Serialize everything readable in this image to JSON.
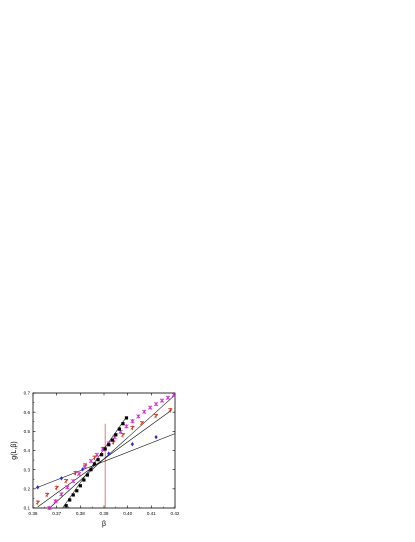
{
  "chart_data": {
    "type": "scatter",
    "title": "",
    "xlabel": "β",
    "ylabel": "g(L,β)",
    "xlim": [
      0.36,
      0.42
    ],
    "ylim": [
      0.1,
      0.7
    ],
    "x_ticks": [
      "0.36",
      "0.37",
      "0.38",
      "0.39",
      "0.40",
      "0.41",
      "0.42"
    ],
    "y_ticks": [
      "0.1",
      "0.2",
      "0.3",
      "0.4",
      "0.5",
      "0.6",
      "0.7"
    ],
    "grid": false,
    "legend": "none",
    "vertical_line": {
      "x": 0.3905,
      "color": "#e85050"
    },
    "series": [
      {
        "marker": "diamond",
        "color": "#2a2ad6",
        "fit": [
          [
            0.361,
            0.203
          ],
          [
            0.42,
            0.488
          ]
        ],
        "x": [
          0.362,
          0.372,
          0.381,
          0.392,
          0.402,
          0.412
        ],
        "y": [
          0.208,
          0.255,
          0.302,
          0.384,
          0.433,
          0.47
        ]
      },
      {
        "marker": "star",
        "color": "#d63a1e",
        "fit": [
          [
            0.362,
            0.106
          ],
          [
            0.4185,
            0.61
          ]
        ],
        "x": [
          0.362,
          0.366,
          0.37,
          0.374,
          0.378,
          0.382,
          0.386,
          0.39,
          0.394,
          0.398,
          0.402,
          0.406,
          0.412,
          0.418
        ],
        "y": [
          0.128,
          0.168,
          0.205,
          0.24,
          0.282,
          0.322,
          0.362,
          0.408,
          0.442,
          0.48,
          0.518,
          0.542,
          0.58,
          0.61
        ]
      },
      {
        "marker": "cross",
        "color": "#d42fd4",
        "fit": [
          [
            0.367,
            0.1
          ],
          [
            0.42,
            0.69
          ]
        ],
        "x": [
          0.367,
          0.3695,
          0.372,
          0.3745,
          0.377,
          0.3795,
          0.382,
          0.3845,
          0.387,
          0.3895,
          0.392,
          0.3945,
          0.397,
          0.3995,
          0.402,
          0.4045,
          0.407,
          0.4095,
          0.412,
          0.4145,
          0.417,
          0.4195
        ],
        "y": [
          0.1,
          0.135,
          0.172,
          0.208,
          0.24,
          0.278,
          0.315,
          0.345,
          0.378,
          0.408,
          0.438,
          0.47,
          0.498,
          0.526,
          0.553,
          0.578,
          0.602,
          0.624,
          0.642,
          0.66,
          0.675,
          0.69
        ]
      },
      {
        "marker": "square",
        "color": "#000000",
        "fit": [
          [
            0.3725,
            0.1
          ],
          [
            0.3995,
            0.575
          ]
        ],
        "x": [
          0.374,
          0.3755,
          0.377,
          0.3785,
          0.38,
          0.3815,
          0.383,
          0.3845,
          0.386,
          0.3875,
          0.389,
          0.3905,
          0.392,
          0.3935,
          0.395,
          0.3965,
          0.398,
          0.3995
        ],
        "y": [
          0.112,
          0.142,
          0.168,
          0.19,
          0.216,
          0.246,
          0.272,
          0.3,
          0.33,
          0.352,
          0.378,
          0.408,
          0.43,
          0.454,
          0.482,
          0.512,
          0.54,
          0.57
        ]
      }
    ]
  }
}
